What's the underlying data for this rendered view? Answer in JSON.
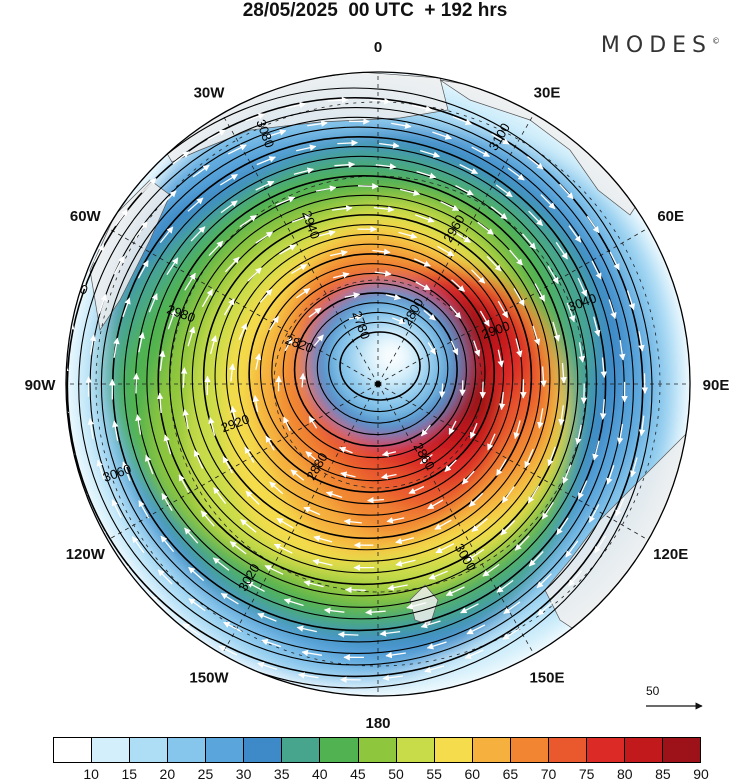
{
  "header": {
    "title": "28/05/2025  00 UTC  + 192 hrs",
    "brand": "MODES",
    "brand_mark": "©"
  },
  "map": {
    "longitude_labels": [
      {
        "text": "0",
        "angle": 0
      },
      {
        "text": "30E",
        "angle": 30
      },
      {
        "text": "60E",
        "angle": 60
      },
      {
        "text": "90E",
        "angle": 90
      },
      {
        "text": "120E",
        "angle": 120
      },
      {
        "text": "150E",
        "angle": 150
      },
      {
        "text": "180",
        "angle": 180
      },
      {
        "text": "150W",
        "angle": 210
      },
      {
        "text": "120W",
        "angle": 240
      },
      {
        "text": "90W",
        "angle": 270
      },
      {
        "text": "60W",
        "angle": 300
      },
      {
        "text": "30W",
        "angle": 330
      }
    ],
    "contour_labels": [
      "2780",
      "2800",
      "2820",
      "2860",
      "2880",
      "2900",
      "2920",
      "2940",
      "2960",
      "2980",
      "3000",
      "3020",
      "3040",
      "3060",
      "3080",
      "3100",
      "3120"
    ],
    "vector_reference": "50",
    "colors": {
      "land": "#efefef",
      "contour": "#000000",
      "vector": "#ffffff"
    }
  },
  "colorbar": {
    "tick_labels": [
      "10",
      "15",
      "20",
      "25",
      "30",
      "35",
      "40",
      "45",
      "50",
      "55",
      "60",
      "65",
      "70",
      "75",
      "80",
      "85",
      "90"
    ],
    "colors": [
      "#ffffff",
      "#d2effb",
      "#aedef6",
      "#86c6ec",
      "#5aa6dc",
      "#3e89c7",
      "#47a58e",
      "#50b250",
      "#8ec63e",
      "#c8dc4a",
      "#f4dc4c",
      "#f5b03e",
      "#f18532",
      "#e9592d",
      "#dc2b26",
      "#c2191c",
      "#9c1218"
    ]
  }
}
